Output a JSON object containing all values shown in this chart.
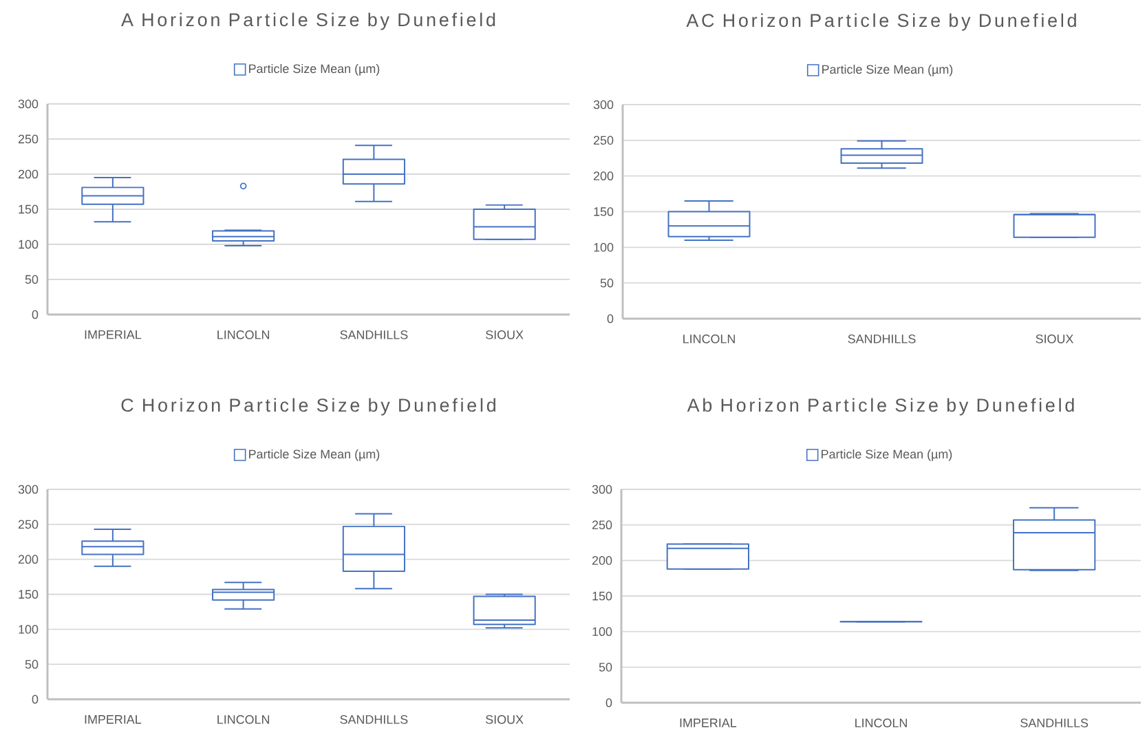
{
  "chart_data": [
    {
      "type": "box",
      "title": "A Horizon Particle Size by Dunefield",
      "categories": [
        "IMPERIAL",
        "LINCOLN",
        "SANDHILLS",
        "SIOUX"
      ],
      "ylim": [
        0,
        300
      ],
      "yticks": [
        0,
        50,
        100,
        150,
        200,
        250,
        300
      ],
      "grid": "y",
      "legend": "top",
      "series": [
        {
          "name": "Particle Size Mean (µm)",
          "color": "#4472c4",
          "boxes": [
            {
              "low": 132,
              "q1": 157,
              "median": 169,
              "q3": 181,
              "high": 195
            },
            {
              "low": 98,
              "q1": 105,
              "median": 111,
              "q3": 119,
              "high": 120,
              "outliers": [
                183
              ]
            },
            {
              "low": 161,
              "q1": 186,
              "median": 200,
              "q3": 221,
              "high": 241
            },
            {
              "low": 107,
              "q1": 107,
              "median": 125,
              "q3": 150,
              "high": 156
            }
          ]
        }
      ]
    },
    {
      "type": "box",
      "title": "AC Horizon Particle Size by Dunefield",
      "categories": [
        "LINCOLN",
        "SANDHILLS",
        "SIOUX"
      ],
      "ylim": [
        0,
        300
      ],
      "yticks": [
        0,
        50,
        100,
        150,
        200,
        250,
        300
      ],
      "grid": "y",
      "legend": "top",
      "series": [
        {
          "name": "Particle Size Mean (µm)",
          "color": "#4472c4",
          "boxes": [
            {
              "low": 110,
              "q1": 115,
              "median": 130,
              "q3": 150,
              "high": 165
            },
            {
              "low": 211,
              "q1": 218,
              "median": 229,
              "q3": 238,
              "high": 249
            },
            {
              "low": 114,
              "q1": 114,
              "median": 146,
              "q3": 146,
              "high": 147
            }
          ]
        }
      ]
    },
    {
      "type": "box",
      "title": "C Horizon Particle Size by Dunefield",
      "categories": [
        "IMPERIAL",
        "LINCOLN",
        "SANDHILLS",
        "SIOUX"
      ],
      "ylim": [
        0,
        300
      ],
      "yticks": [
        0,
        50,
        100,
        150,
        200,
        250,
        300
      ],
      "grid": "y",
      "legend": "top",
      "series": [
        {
          "name": "Particle Size Mean (µm)",
          "color": "#4472c4",
          "boxes": [
            {
              "low": 190,
              "q1": 207,
              "median": 218,
              "q3": 226,
              "high": 243
            },
            {
              "low": 129,
              "q1": 142,
              "median": 153,
              "q3": 157,
              "high": 167
            },
            {
              "low": 158,
              "q1": 183,
              "median": 207,
              "q3": 247,
              "high": 265
            },
            {
              "low": 102,
              "q1": 107,
              "median": 113,
              "q3": 147,
              "high": 150
            }
          ]
        }
      ]
    },
    {
      "type": "box",
      "title": "Ab Horizon Particle Size by Dunefield",
      "categories": [
        "IMPERIAL",
        "LINCOLN",
        "SANDHILLS"
      ],
      "ylim": [
        0,
        300
      ],
      "yticks": [
        0,
        50,
        100,
        150,
        200,
        250,
        300
      ],
      "grid": "y",
      "legend": "top",
      "series": [
        {
          "name": "Particle Size Mean (µm)",
          "color": "#4472c4",
          "boxes": [
            {
              "low": 188,
              "q1": 188,
              "median": 217,
              "q3": 223,
              "high": 223
            },
            {
              "low": 114,
              "q1": 114,
              "median": 114,
              "q3": 114,
              "high": 114
            },
            {
              "low": 186,
              "q1": 187,
              "median": 239,
              "q3": 257,
              "high": 274
            }
          ]
        }
      ]
    }
  ]
}
